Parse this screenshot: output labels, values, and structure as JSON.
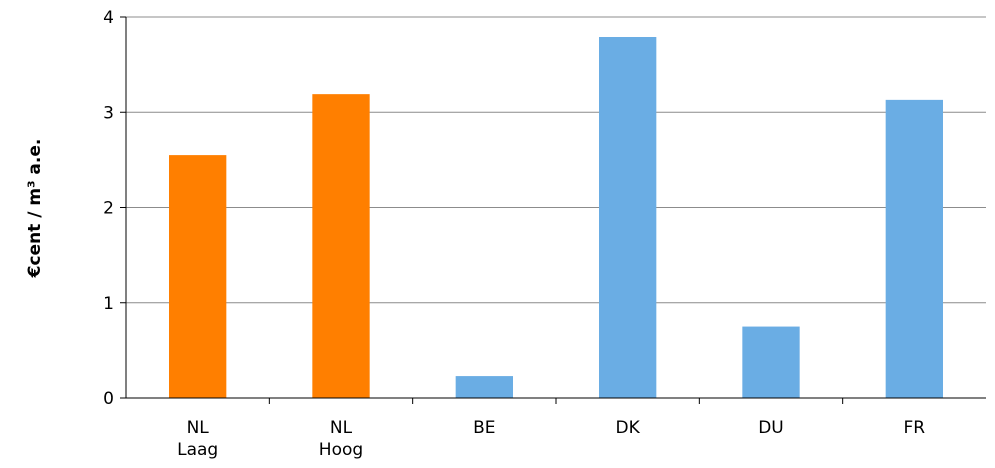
{
  "chart_data": {
    "type": "bar",
    "categories": [
      [
        "NL",
        "Laag"
      ],
      [
        "NL",
        "Hoog"
      ],
      [
        "BE"
      ],
      [
        "DK"
      ],
      [
        "DU"
      ],
      [
        "FR"
      ]
    ],
    "values": [
      2.55,
      3.19,
      0.23,
      3.79,
      0.75,
      3.13
    ],
    "bar_colors": [
      "#FF7F00",
      "#FF7F00",
      "#6AADE4",
      "#6AADE4",
      "#6AADE4",
      "#6AADE4"
    ],
    "title": "",
    "xlabel": "",
    "ylabel": "€cent / m³ a.e.",
    "ylim": [
      0,
      4
    ],
    "yticks": [
      "0",
      "1",
      "2",
      "3",
      "4"
    ],
    "grid": true
  }
}
